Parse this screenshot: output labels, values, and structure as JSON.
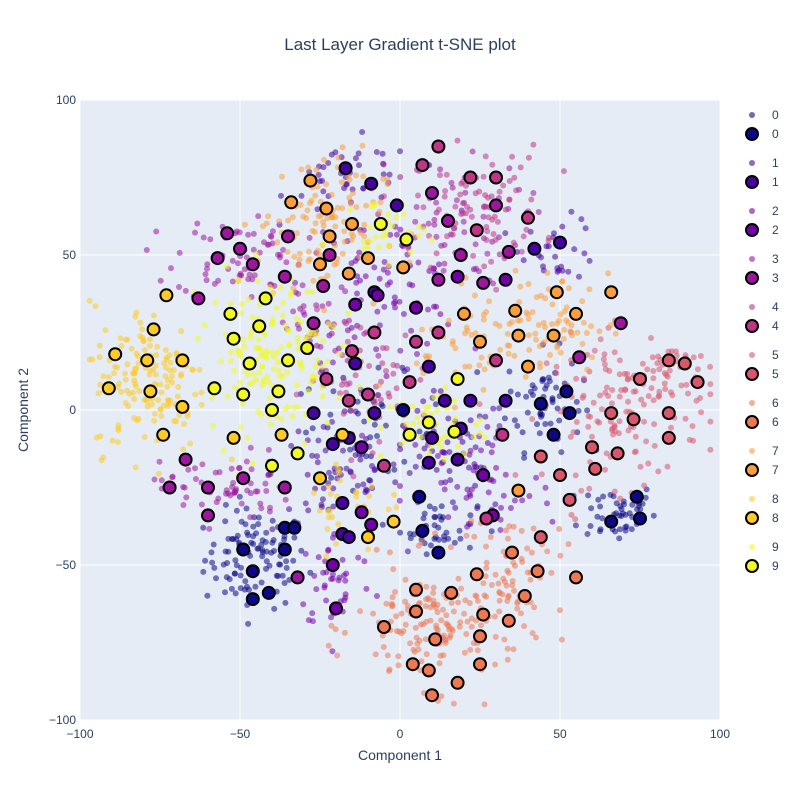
{
  "chart_data": {
    "type": "scatter",
    "title": "Last Layer Gradient t-SNE plot",
    "xlabel": "Component 1",
    "ylabel": "Component 2",
    "xlim": [
      -100,
      100
    ],
    "ylim": [
      -100,
      100
    ],
    "xticks": [
      -100,
      -50,
      0,
      50,
      100
    ],
    "yticks": [
      -100,
      -50,
      0,
      50,
      100
    ],
    "xtick_labels": [
      "−100",
      "−50",
      "0",
      "50",
      "100"
    ],
    "ytick_labels": [
      "−100",
      "−50",
      "0",
      "50",
      "100"
    ],
    "grid": true,
    "legend_position": "right",
    "background_color": "#e5ecf6",
    "colors": [
      "#0d0887",
      "#46039f",
      "#7201a8",
      "#9c179e",
      "#bd3786",
      "#d8576b",
      "#ed7953",
      "#fb9f3a",
      "#fdca26",
      "#f0f921"
    ],
    "legend": [
      {
        "label": "0",
        "kind": "small"
      },
      {
        "label": "0",
        "kind": "large"
      },
      {
        "label": "1",
        "kind": "small"
      },
      {
        "label": "1",
        "kind": "large"
      },
      {
        "label": "2",
        "kind": "small"
      },
      {
        "label": "2",
        "kind": "large"
      },
      {
        "label": "3",
        "kind": "small"
      },
      {
        "label": "3",
        "kind": "large"
      },
      {
        "label": "4",
        "kind": "small"
      },
      {
        "label": "4",
        "kind": "large"
      },
      {
        "label": "5",
        "kind": "small"
      },
      {
        "label": "5",
        "kind": "large"
      },
      {
        "label": "6",
        "kind": "small"
      },
      {
        "label": "6",
        "kind": "large"
      },
      {
        "label": "7",
        "kind": "small"
      },
      {
        "label": "7",
        "kind": "large"
      },
      {
        "label": "8",
        "kind": "small"
      },
      {
        "label": "8",
        "kind": "large"
      },
      {
        "label": "9",
        "kind": "small"
      },
      {
        "label": "9",
        "kind": "large"
      }
    ],
    "clusters": [
      {
        "class": 0,
        "x": -45,
        "y": -48,
        "sx": 8,
        "sy": 8,
        "n": 110
      },
      {
        "class": 0,
        "x": 68,
        "y": -33,
        "sx": 6,
        "sy": 5,
        "n": 50
      },
      {
        "class": 0,
        "x": 45,
        "y": 3,
        "sx": 6,
        "sy": 8,
        "n": 60
      },
      {
        "class": 0,
        "x": 12,
        "y": -38,
        "sx": 6,
        "sy": 4,
        "n": 40
      },
      {
        "class": 0,
        "x": -10,
        "y": -5,
        "sx": 12,
        "sy": 8,
        "n": 50
      },
      {
        "class": 1,
        "x": -20,
        "y": -20,
        "sx": 10,
        "sy": 10,
        "n": 60
      },
      {
        "class": 1,
        "x": 15,
        "y": -15,
        "sx": 10,
        "sy": 10,
        "n": 55
      },
      {
        "class": 1,
        "x": -15,
        "y": 75,
        "sx": 10,
        "sy": 6,
        "n": 40
      },
      {
        "class": 1,
        "x": 50,
        "y": 52,
        "sx": 6,
        "sy": 5,
        "n": 30
      },
      {
        "class": 2,
        "x": -5,
        "y": 40,
        "sx": 12,
        "sy": 12,
        "n": 80
      },
      {
        "class": 2,
        "x": 25,
        "y": -25,
        "sx": 12,
        "sy": 12,
        "n": 60
      },
      {
        "class": 2,
        "x": -20,
        "y": -55,
        "sx": 6,
        "sy": 8,
        "n": 40
      },
      {
        "class": 3,
        "x": -50,
        "y": 50,
        "sx": 10,
        "sy": 7,
        "n": 70
      },
      {
        "class": 3,
        "x": 15,
        "y": 60,
        "sx": 12,
        "sy": 10,
        "n": 60
      },
      {
        "class": 3,
        "x": -55,
        "y": -25,
        "sx": 10,
        "sy": 6,
        "n": 60
      },
      {
        "class": 3,
        "x": -25,
        "y": 25,
        "sx": 8,
        "sy": 8,
        "n": 40
      },
      {
        "class": 4,
        "x": 25,
        "y": 65,
        "sx": 10,
        "sy": 10,
        "n": 80
      },
      {
        "class": 4,
        "x": -10,
        "y": 10,
        "sx": 10,
        "sy": 10,
        "n": 60
      },
      {
        "class": 5,
        "x": 70,
        "y": 0,
        "sx": 12,
        "sy": 12,
        "n": 130
      },
      {
        "class": 5,
        "x": 85,
        "y": 12,
        "sx": 6,
        "sy": 5,
        "n": 40
      },
      {
        "class": 6,
        "x": 12,
        "y": -70,
        "sx": 13,
        "sy": 10,
        "n": 170
      },
      {
        "class": 6,
        "x": 35,
        "y": -50,
        "sx": 8,
        "sy": 8,
        "n": 60
      },
      {
        "class": 7,
        "x": -25,
        "y": 60,
        "sx": 10,
        "sy": 12,
        "n": 110
      },
      {
        "class": 7,
        "x": 45,
        "y": 28,
        "sx": 10,
        "sy": 8,
        "n": 80
      },
      {
        "class": 7,
        "x": 20,
        "y": 20,
        "sx": 8,
        "sy": 8,
        "n": 40
      },
      {
        "class": 8,
        "x": -78,
        "y": 10,
        "sx": 9,
        "sy": 12,
        "n": 150
      },
      {
        "class": 8,
        "x": -15,
        "y": -30,
        "sx": 8,
        "sy": 8,
        "n": 30
      },
      {
        "class": 9,
        "x": -40,
        "y": 18,
        "sx": 10,
        "sy": 13,
        "n": 170
      },
      {
        "class": 9,
        "x": 10,
        "y": -5,
        "sx": 8,
        "sy": 6,
        "n": 50
      },
      {
        "class": 9,
        "x": -5,
        "y": 58,
        "sx": 6,
        "sy": 5,
        "n": 30
      }
    ],
    "highlighted_points": [
      {
        "class": 0,
        "x": -36,
        "y": -38
      },
      {
        "class": 0,
        "x": -49,
        "y": -45
      },
      {
        "class": 0,
        "x": -46,
        "y": -52
      },
      {
        "class": 0,
        "x": -36,
        "y": -45
      },
      {
        "class": 0,
        "x": -41,
        "y": -59
      },
      {
        "class": 0,
        "x": -46,
        "y": -61
      },
      {
        "class": 0,
        "x": -33,
        "y": -38
      },
      {
        "class": 0,
        "x": 74,
        "y": -28
      },
      {
        "class": 0,
        "x": 66,
        "y": -36
      },
      {
        "class": 0,
        "x": 75,
        "y": -35
      },
      {
        "class": 0,
        "x": 52,
        "y": 6
      },
      {
        "class": 0,
        "x": 53,
        "y": -1
      },
      {
        "class": 0,
        "x": 44,
        "y": 2
      },
      {
        "class": 0,
        "x": 48,
        "y": -8
      },
      {
        "class": 0,
        "x": 6,
        "y": -28
      },
      {
        "class": 0,
        "x": 7,
        "y": -39
      },
      {
        "class": 0,
        "x": 12,
        "y": -46
      },
      {
        "class": 0,
        "x": 1,
        "y": 0
      },
      {
        "class": 1,
        "x": -17,
        "y": 78
      },
      {
        "class": 1,
        "x": -9,
        "y": 73
      },
      {
        "class": 1,
        "x": -1,
        "y": 66
      },
      {
        "class": 1,
        "x": -27,
        "y": -1
      },
      {
        "class": 1,
        "x": -21,
        "y": -11
      },
      {
        "class": 1,
        "x": -16,
        "y": -9
      },
      {
        "class": 1,
        "x": -8,
        "y": -1
      },
      {
        "class": 1,
        "x": -14,
        "y": 15
      },
      {
        "class": 1,
        "x": -8,
        "y": 38
      },
      {
        "class": 1,
        "x": 9,
        "y": 14
      },
      {
        "class": 1,
        "x": 10,
        "y": -9
      },
      {
        "class": 1,
        "x": 9,
        "y": -17
      },
      {
        "class": 1,
        "x": 14,
        "y": 3
      },
      {
        "class": 1,
        "x": 22,
        "y": 3
      },
      {
        "class": 1,
        "x": 19,
        "y": -6
      },
      {
        "class": 1,
        "x": 33,
        "y": 3
      },
      {
        "class": 1,
        "x": 18,
        "y": -16
      },
      {
        "class": 1,
        "x": -18,
        "y": -40
      },
      {
        "class": 1,
        "x": -18,
        "y": -30
      },
      {
        "class": 1,
        "x": -16,
        "y": -41
      },
      {
        "class": 1,
        "x": 42,
        "y": 52
      },
      {
        "class": 1,
        "x": 50,
        "y": 54
      },
      {
        "class": 2,
        "x": -14,
        "y": 34
      },
      {
        "class": 2,
        "x": -7,
        "y": 37
      },
      {
        "class": 2,
        "x": 5,
        "y": 33
      },
      {
        "class": 2,
        "x": -12,
        "y": -12
      },
      {
        "class": 2,
        "x": -12,
        "y": -33
      },
      {
        "class": 2,
        "x": -9,
        "y": -37
      },
      {
        "class": 2,
        "x": 26,
        "y": -21
      },
      {
        "class": 2,
        "x": 29,
        "y": -34
      },
      {
        "class": 2,
        "x": -20,
        "y": -64
      },
      {
        "class": 2,
        "x": -21,
        "y": -50
      },
      {
        "class": 2,
        "x": 18,
        "y": 43
      },
      {
        "class": 2,
        "x": 33,
        "y": 42
      },
      {
        "class": 3,
        "x": -54,
        "y": 57
      },
      {
        "class": 3,
        "x": -50,
        "y": 52
      },
      {
        "class": 3,
        "x": -57,
        "y": 49
      },
      {
        "class": 3,
        "x": -46,
        "y": 47
      },
      {
        "class": 3,
        "x": -35,
        "y": 56
      },
      {
        "class": 3,
        "x": -36,
        "y": 43
      },
      {
        "class": 3,
        "x": -63,
        "y": 36
      },
      {
        "class": 3,
        "x": -27,
        "y": 28
      },
      {
        "class": 3,
        "x": -22,
        "y": 50
      },
      {
        "class": 3,
        "x": -24,
        "y": 40
      },
      {
        "class": 3,
        "x": -67,
        "y": -16
      },
      {
        "class": 3,
        "x": -72,
        "y": -25
      },
      {
        "class": 3,
        "x": -60,
        "y": -25
      },
      {
        "class": 3,
        "x": -60,
        "y": -34
      },
      {
        "class": 3,
        "x": -49,
        "y": -22
      },
      {
        "class": 3,
        "x": -36,
        "y": -25
      },
      {
        "class": 3,
        "x": -32,
        "y": -54
      },
      {
        "class": 3,
        "x": 12,
        "y": 42
      },
      {
        "class": 3,
        "x": 10,
        "y": 70
      },
      {
        "class": 3,
        "x": 15,
        "y": 61
      },
      {
        "class": 3,
        "x": 19,
        "y": 50
      },
      {
        "class": 3,
        "x": 30,
        "y": 66
      },
      {
        "class": 3,
        "x": 34,
        "y": 51
      },
      {
        "class": 3,
        "x": 26,
        "y": 41
      },
      {
        "class": 3,
        "x": 56,
        "y": 17
      },
      {
        "class": 3,
        "x": 69,
        "y": 28
      },
      {
        "class": 4,
        "x": 22,
        "y": 75
      },
      {
        "class": 4,
        "x": 30,
        "y": 75
      },
      {
        "class": 4,
        "x": 24,
        "y": 58
      },
      {
        "class": 4,
        "x": 7,
        "y": 79
      },
      {
        "class": 4,
        "x": 12,
        "y": 85
      },
      {
        "class": 4,
        "x": 40,
        "y": 62
      },
      {
        "class": 4,
        "x": 5,
        "y": 22
      },
      {
        "class": 4,
        "x": 12,
        "y": 25
      },
      {
        "class": 4,
        "x": -8,
        "y": 25
      },
      {
        "class": 4,
        "x": 3,
        "y": 9
      },
      {
        "class": 4,
        "x": -15,
        "y": 19
      },
      {
        "class": 4,
        "x": -10,
        "y": 5
      },
      {
        "class": 4,
        "x": -16,
        "y": 3
      },
      {
        "class": 4,
        "x": -23,
        "y": 10
      },
      {
        "class": 4,
        "x": 30,
        "y": 16
      },
      {
        "class": 4,
        "x": 32,
        "y": -8
      },
      {
        "class": 4,
        "x": 27,
        "y": -35
      },
      {
        "class": 4,
        "x": -5,
        "y": -18
      },
      {
        "class": 5,
        "x": 84,
        "y": 16
      },
      {
        "class": 5,
        "x": 89,
        "y": 15
      },
      {
        "class": 5,
        "x": 93,
        "y": 9
      },
      {
        "class": 5,
        "x": 75,
        "y": 10
      },
      {
        "class": 5,
        "x": 66,
        "y": -1
      },
      {
        "class": 5,
        "x": 73,
        "y": -3
      },
      {
        "class": 5,
        "x": 84,
        "y": -1
      },
      {
        "class": 5,
        "x": 84,
        "y": -9
      },
      {
        "class": 5,
        "x": 68,
        "y": -14
      },
      {
        "class": 5,
        "x": 60,
        "y": -12
      },
      {
        "class": 5,
        "x": 61,
        "y": -19
      },
      {
        "class": 5,
        "x": 50,
        "y": -21
      },
      {
        "class": 5,
        "x": 53,
        "y": -29
      },
      {
        "class": 5,
        "x": 44,
        "y": -15
      },
      {
        "class": 5,
        "x": 44,
        "y": -41
      },
      {
        "class": 6,
        "x": 24,
        "y": -53
      },
      {
        "class": 6,
        "x": 5,
        "y": -58
      },
      {
        "class": 6,
        "x": 5,
        "y": -65
      },
      {
        "class": 6,
        "x": -5,
        "y": -70
      },
      {
        "class": 6,
        "x": 16,
        "y": -59
      },
      {
        "class": 6,
        "x": 26,
        "y": -66
      },
      {
        "class": 6,
        "x": 25,
        "y": -73
      },
      {
        "class": 6,
        "x": 11,
        "y": -74
      },
      {
        "class": 6,
        "x": 4,
        "y": -82
      },
      {
        "class": 6,
        "x": 9,
        "y": -84
      },
      {
        "class": 6,
        "x": 25,
        "y": -82
      },
      {
        "class": 6,
        "x": 18,
        "y": -88
      },
      {
        "class": 6,
        "x": 10,
        "y": -92
      },
      {
        "class": 6,
        "x": 35,
        "y": -46
      },
      {
        "class": 6,
        "x": 39,
        "y": -60
      },
      {
        "class": 6,
        "x": 34,
        "y": -68
      },
      {
        "class": 6,
        "x": 43,
        "y": -52
      },
      {
        "class": 6,
        "x": 55,
        "y": -54
      },
      {
        "class": 7,
        "x": -28,
        "y": 74
      },
      {
        "class": 7,
        "x": -34,
        "y": 67
      },
      {
        "class": 7,
        "x": -23,
        "y": 65
      },
      {
        "class": 7,
        "x": -15,
        "y": 60
      },
      {
        "class": 7,
        "x": -22,
        "y": 56
      },
      {
        "class": 7,
        "x": -10,
        "y": 49
      },
      {
        "class": 7,
        "x": -25,
        "y": 47
      },
      {
        "class": 7,
        "x": -16,
        "y": 44
      },
      {
        "class": 7,
        "x": 1,
        "y": 46
      },
      {
        "class": 7,
        "x": 20,
        "y": 31
      },
      {
        "class": 7,
        "x": 25,
        "y": 22
      },
      {
        "class": 7,
        "x": 36,
        "y": 32
      },
      {
        "class": 7,
        "x": 37,
        "y": 24
      },
      {
        "class": 7,
        "x": 48,
        "y": 24
      },
      {
        "class": 7,
        "x": 49,
        "y": 38
      },
      {
        "class": 7,
        "x": 55,
        "y": 31
      },
      {
        "class": 7,
        "x": 66,
        "y": 38
      },
      {
        "class": 7,
        "x": 40,
        "y": 14
      },
      {
        "class": 7,
        "x": 37,
        "y": -26
      },
      {
        "class": 8,
        "x": -73,
        "y": 37
      },
      {
        "class": 8,
        "x": -77,
        "y": 26
      },
      {
        "class": 8,
        "x": -89,
        "y": 18
      },
      {
        "class": 8,
        "x": -79,
        "y": 16
      },
      {
        "class": 8,
        "x": -68,
        "y": 16
      },
      {
        "class": 8,
        "x": -91,
        "y": 7
      },
      {
        "class": 8,
        "x": -78,
        "y": 6
      },
      {
        "class": 8,
        "x": -68,
        "y": 1
      },
      {
        "class": 8,
        "x": -74,
        "y": -8
      },
      {
        "class": 8,
        "x": -52,
        "y": -9
      },
      {
        "class": 8,
        "x": -37,
        "y": -8
      },
      {
        "class": 8,
        "x": -25,
        "y": -22
      },
      {
        "class": 8,
        "x": -18,
        "y": -8
      },
      {
        "class": 8,
        "x": -10,
        "y": -41
      },
      {
        "class": 8,
        "x": -2,
        "y": -36
      },
      {
        "class": 9,
        "x": -6,
        "y": 60
      },
      {
        "class": 9,
        "x": 2,
        "y": 55
      },
      {
        "class": 9,
        "x": -42,
        "y": 36
      },
      {
        "class": 9,
        "x": -53,
        "y": 31
      },
      {
        "class": 9,
        "x": -52,
        "y": 23
      },
      {
        "class": 9,
        "x": -44,
        "y": 27
      },
      {
        "class": 9,
        "x": -35,
        "y": 16
      },
      {
        "class": 9,
        "x": -47,
        "y": 15
      },
      {
        "class": 9,
        "x": -29,
        "y": 20
      },
      {
        "class": 9,
        "x": -58,
        "y": 7
      },
      {
        "class": 9,
        "x": -49,
        "y": 5
      },
      {
        "class": 9,
        "x": -38,
        "y": 6
      },
      {
        "class": 9,
        "x": -40,
        "y": 0
      },
      {
        "class": 9,
        "x": -32,
        "y": -14
      },
      {
        "class": 9,
        "x": -40,
        "y": -18
      },
      {
        "class": 9,
        "x": 9,
        "y": -4
      },
      {
        "class": 9,
        "x": 17,
        "y": -7
      },
      {
        "class": 9,
        "x": 3,
        "y": -8
      },
      {
        "class": 9,
        "x": 18,
        "y": 10
      }
    ]
  }
}
